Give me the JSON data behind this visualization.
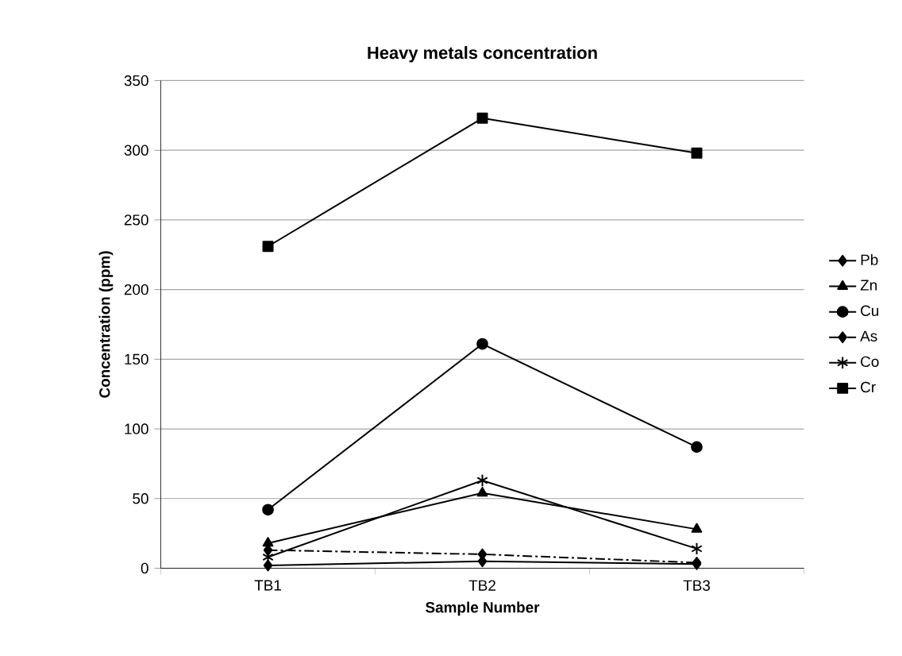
{
  "chart_data": {
    "type": "line",
    "title": "Heavy metals concentration",
    "xlabel": "Sample Number",
    "ylabel": "Concentration (ppm)",
    "categories": [
      "TB1",
      "TB2",
      "TB3"
    ],
    "ylim": [
      0,
      350
    ],
    "yticks": [
      0,
      50,
      100,
      150,
      200,
      250,
      300,
      350
    ],
    "grid": "y",
    "legend": "right",
    "series": [
      {
        "name": "Pb",
        "color": "#000000",
        "marker": "diamond",
        "line_style": "solid",
        "values": [
          2,
          5,
          3
        ]
      },
      {
        "name": "Zn",
        "color": "#000000",
        "marker": "triangle",
        "line_style": "solid",
        "values": [
          18,
          54,
          28
        ]
      },
      {
        "name": "Cu",
        "color": "#000000",
        "marker": "circle",
        "line_style": "solid",
        "values": [
          42,
          161,
          87
        ]
      },
      {
        "name": "As",
        "color": "#000000",
        "marker": "diamond",
        "line_style": "dashdot",
        "values": [
          13,
          10,
          4
        ]
      },
      {
        "name": "Co",
        "color": "#000000",
        "marker": "cross",
        "line_style": "solid",
        "values": [
          8,
          63,
          14
        ]
      },
      {
        "name": "Cr",
        "color": "#000000",
        "marker": "square",
        "line_style": "solid",
        "values": [
          231,
          323,
          298
        ]
      }
    ]
  }
}
